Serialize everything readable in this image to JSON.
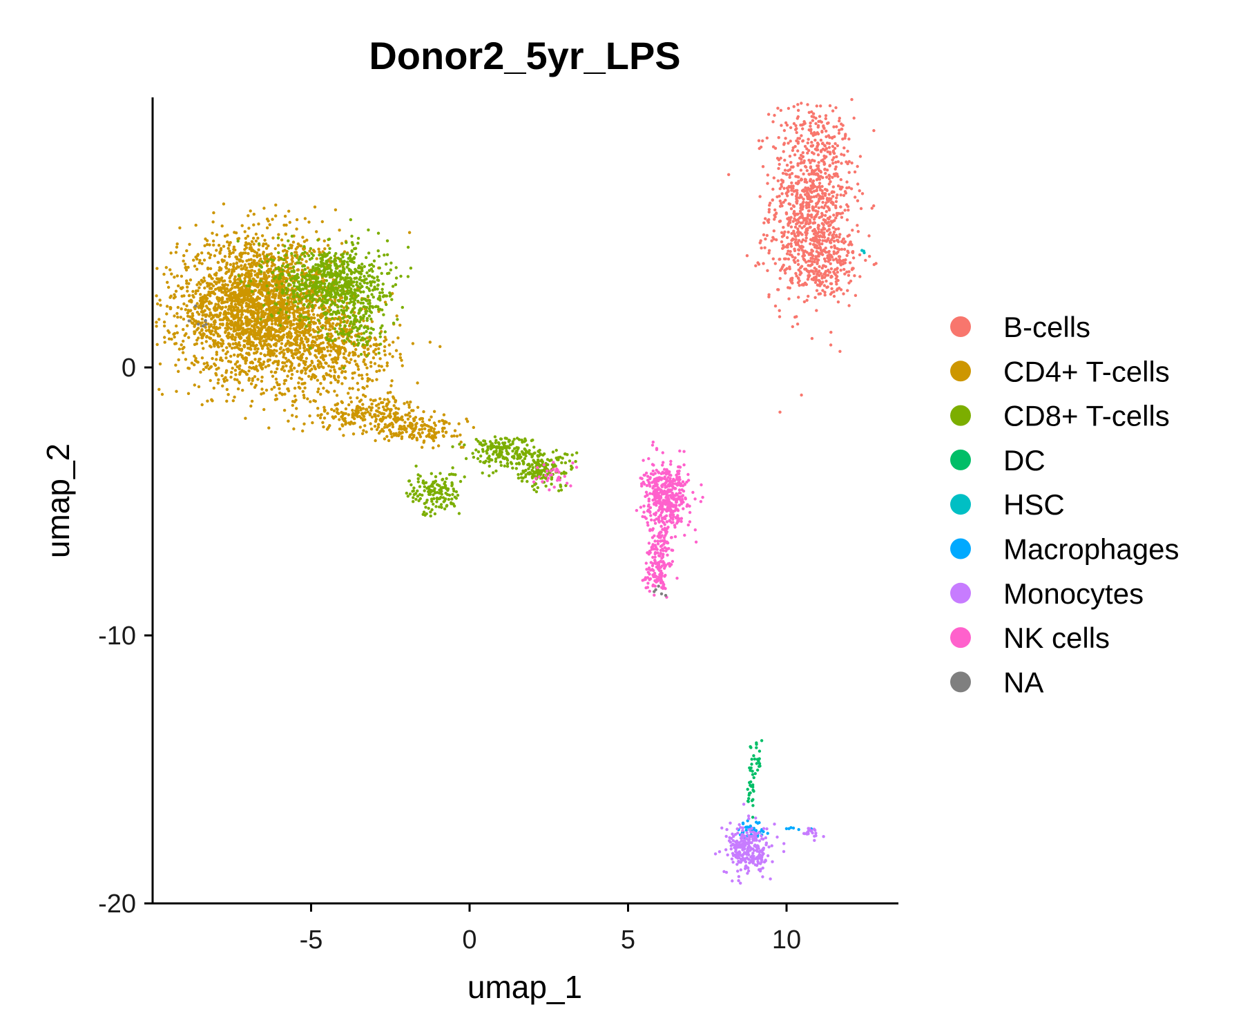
{
  "chart_data": {
    "type": "scatter",
    "title": "Donor2_5yr_LPS",
    "xlabel": "umap_1",
    "ylabel": "umap_2",
    "xlim": [
      -10,
      13.5
    ],
    "ylim": [
      -20,
      10
    ],
    "x_ticks": [
      -5,
      0,
      5,
      10
    ],
    "y_ticks": [
      0,
      -10,
      -20
    ],
    "x_tick_labels": [
      "-5",
      "0",
      "5",
      "10"
    ],
    "y_tick_labels": [
      "0",
      "-10",
      "-20"
    ],
    "grid": false,
    "legend_position": "right",
    "series": [
      {
        "name": "B-cells",
        "color": "#F8766D",
        "clusters": [
          {
            "cx": 10.8,
            "cy": 6.3,
            "sx": 0.65,
            "sy": 1.9,
            "n": 900
          },
          {
            "cx": 11.1,
            "cy": 4.0,
            "sx": 0.75,
            "sy": 0.7,
            "n": 250
          }
        ]
      },
      {
        "name": "CD4+ T-cells",
        "color": "#CD9600",
        "clusters": [
          {
            "cx": -6.6,
            "cy": 2.2,
            "sx": 1.3,
            "sy": 1.3,
            "n": 2600
          },
          {
            "cx": -4.2,
            "cy": 0.5,
            "sx": 1.0,
            "sy": 0.8,
            "n": 400
          },
          {
            "cx": -3.2,
            "cy": -1.7,
            "sx": 0.9,
            "sy": 0.3,
            "n": 220
          },
          {
            "cx": -1.6,
            "cy": -2.3,
            "sx": 0.7,
            "sy": 0.25,
            "n": 160
          }
        ]
      },
      {
        "name": "CD8+ T-cells",
        "color": "#7CAE00",
        "clusters": [
          {
            "cx": -4.4,
            "cy": 3.2,
            "sx": 0.9,
            "sy": 0.7,
            "n": 700
          },
          {
            "cx": -3.6,
            "cy": 1.8,
            "sx": 0.5,
            "sy": 0.6,
            "n": 150
          },
          {
            "cx": 1.0,
            "cy": -3.1,
            "sx": 0.55,
            "sy": 0.3,
            "n": 180
          },
          {
            "cx": 2.3,
            "cy": -3.8,
            "sx": 0.5,
            "sy": 0.35,
            "n": 180
          },
          {
            "cx": -1.1,
            "cy": -4.7,
            "sx": 0.4,
            "sy": 0.4,
            "n": 150
          }
        ]
      },
      {
        "name": "DC",
        "color": "#00BE67",
        "clusters": [
          {
            "cx": 9.0,
            "cy": -14.6,
            "sx": 0.12,
            "sy": 0.4,
            "n": 25
          },
          {
            "cx": 8.9,
            "cy": -15.9,
            "sx": 0.06,
            "sy": 0.4,
            "n": 20
          }
        ]
      },
      {
        "name": "HSC",
        "color": "#00BFC4",
        "clusters": [
          {
            "cx": 12.4,
            "cy": 4.3,
            "sx": 0.05,
            "sy": 0.05,
            "n": 3
          }
        ]
      },
      {
        "name": "Macrophages",
        "color": "#00A9FF",
        "clusters": [
          {
            "cx": 9.0,
            "cy": -17.3,
            "sx": 0.25,
            "sy": 0.2,
            "n": 45
          },
          {
            "cx": 10.4,
            "cy": -17.2,
            "sx": 0.25,
            "sy": 0.05,
            "n": 8
          }
        ]
      },
      {
        "name": "Monocytes",
        "color": "#C77CFF",
        "clusters": [
          {
            "cx": 8.8,
            "cy": -18.0,
            "sx": 0.35,
            "sy": 0.45,
            "n": 260
          },
          {
            "cx": 10.8,
            "cy": -17.4,
            "sx": 0.15,
            "sy": 0.12,
            "n": 20
          }
        ]
      },
      {
        "name": "NK cells",
        "color": "#FF61CC",
        "clusters": [
          {
            "cx": 6.2,
            "cy": -4.8,
            "sx": 0.35,
            "sy": 0.6,
            "n": 420
          },
          {
            "cx": 6.0,
            "cy": -6.8,
            "sx": 0.2,
            "sy": 0.55,
            "n": 120
          },
          {
            "cx": 5.9,
            "cy": -7.9,
            "sx": 0.2,
            "sy": 0.3,
            "n": 60
          },
          {
            "cx": 2.6,
            "cy": -4.0,
            "sx": 0.25,
            "sy": 0.25,
            "n": 30
          }
        ]
      },
      {
        "name": "NA",
        "color": "#7F7F7F",
        "clusters": [
          {
            "cx": -8.5,
            "cy": 2.0,
            "sx": 0.2,
            "sy": 0.3,
            "n": 6
          },
          {
            "cx": 6.0,
            "cy": -8.3,
            "sx": 0.15,
            "sy": 0.1,
            "n": 5
          }
        ]
      }
    ]
  }
}
